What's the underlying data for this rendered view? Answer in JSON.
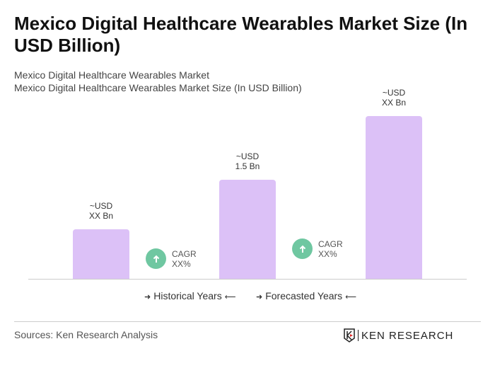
{
  "title": "Mexico Digital Healthcare Wearables Market Size (In USD Billion)",
  "subtitle1": "Mexico Digital Healthcare Wearables Market",
  "subtitle2": "Mexico Digital Healthcare Wearables Market Size (In USD Billion)",
  "chart_data": {
    "type": "bar",
    "values": [
      0.75,
      1.5,
      2.46
    ],
    "data_labels": [
      [
        "~USD",
        "XX Bn"
      ],
      [
        "~USD",
        "1.5 Bn"
      ],
      [
        "~USD",
        "XX Bn"
      ]
    ],
    "cagr": [
      {
        "label": "CAGR",
        "value": "XX%"
      },
      {
        "label": "CAGR",
        "value": "XX%"
      }
    ],
    "legend": [
      "Historical Years",
      "Forecasted Years"
    ],
    "bar_color": "#dcc1f7",
    "cagr_color": "#6fc7a1"
  },
  "sources": "Sources: Ken Research Analysis",
  "logo": "KEN RESEARCH"
}
